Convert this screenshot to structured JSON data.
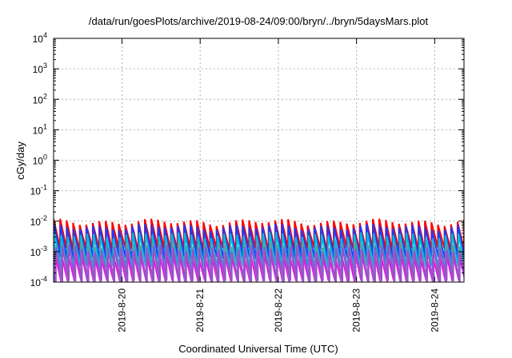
{
  "chart_data": {
    "type": "line",
    "title": "/data/run/goesPlots/archive/2019-08-24/09:00/bryn/../bryn/5daysMars.plot",
    "xlabel": "Coordinated Universal Time (UTC)",
    "ylabel": "cGy/day",
    "y_scale": "log",
    "ylim_exponents": [
      -4,
      4
    ],
    "y_ticks": [
      {
        "base": "10",
        "exp": "4"
      },
      {
        "base": "10",
        "exp": "3"
      },
      {
        "base": "10",
        "exp": "2"
      },
      {
        "base": "10",
        "exp": "1"
      },
      {
        "base": "10",
        "exp": "0"
      },
      {
        "base": "10",
        "exp": "-1"
      },
      {
        "base": "10",
        "exp": "-2"
      },
      {
        "base": "10",
        "exp": "-3"
      },
      {
        "base": "10",
        "exp": "-4"
      }
    ],
    "xlim": [
      "2019-08-19T03:00",
      "2019-08-24T09:00"
    ],
    "x_ticks": [
      "2019-8-20",
      "2019-8-21",
      "2019-8-22",
      "2019-8-23",
      "2019-8-24"
    ],
    "grid": true,
    "cycles_per_day": 12,
    "series": [
      {
        "color": "#ff0000",
        "peak": 0.0095,
        "trough": 0.0012
      },
      {
        "color": "#1a3cff",
        "peak": 0.0065,
        "trough": 0.0006
      },
      {
        "color": "#00bcd4",
        "peak": 0.0035,
        "trough": 0.0003
      },
      {
        "color": "#ff00ff",
        "peak": 0.0009,
        "trough": 0.0001
      },
      {
        "color": "#5f9ea0",
        "peak": 0.0018,
        "trough": 0.0001
      },
      {
        "color": "#9a50c8",
        "peak": 0.0013,
        "trough": 0.0001
      }
    ]
  }
}
